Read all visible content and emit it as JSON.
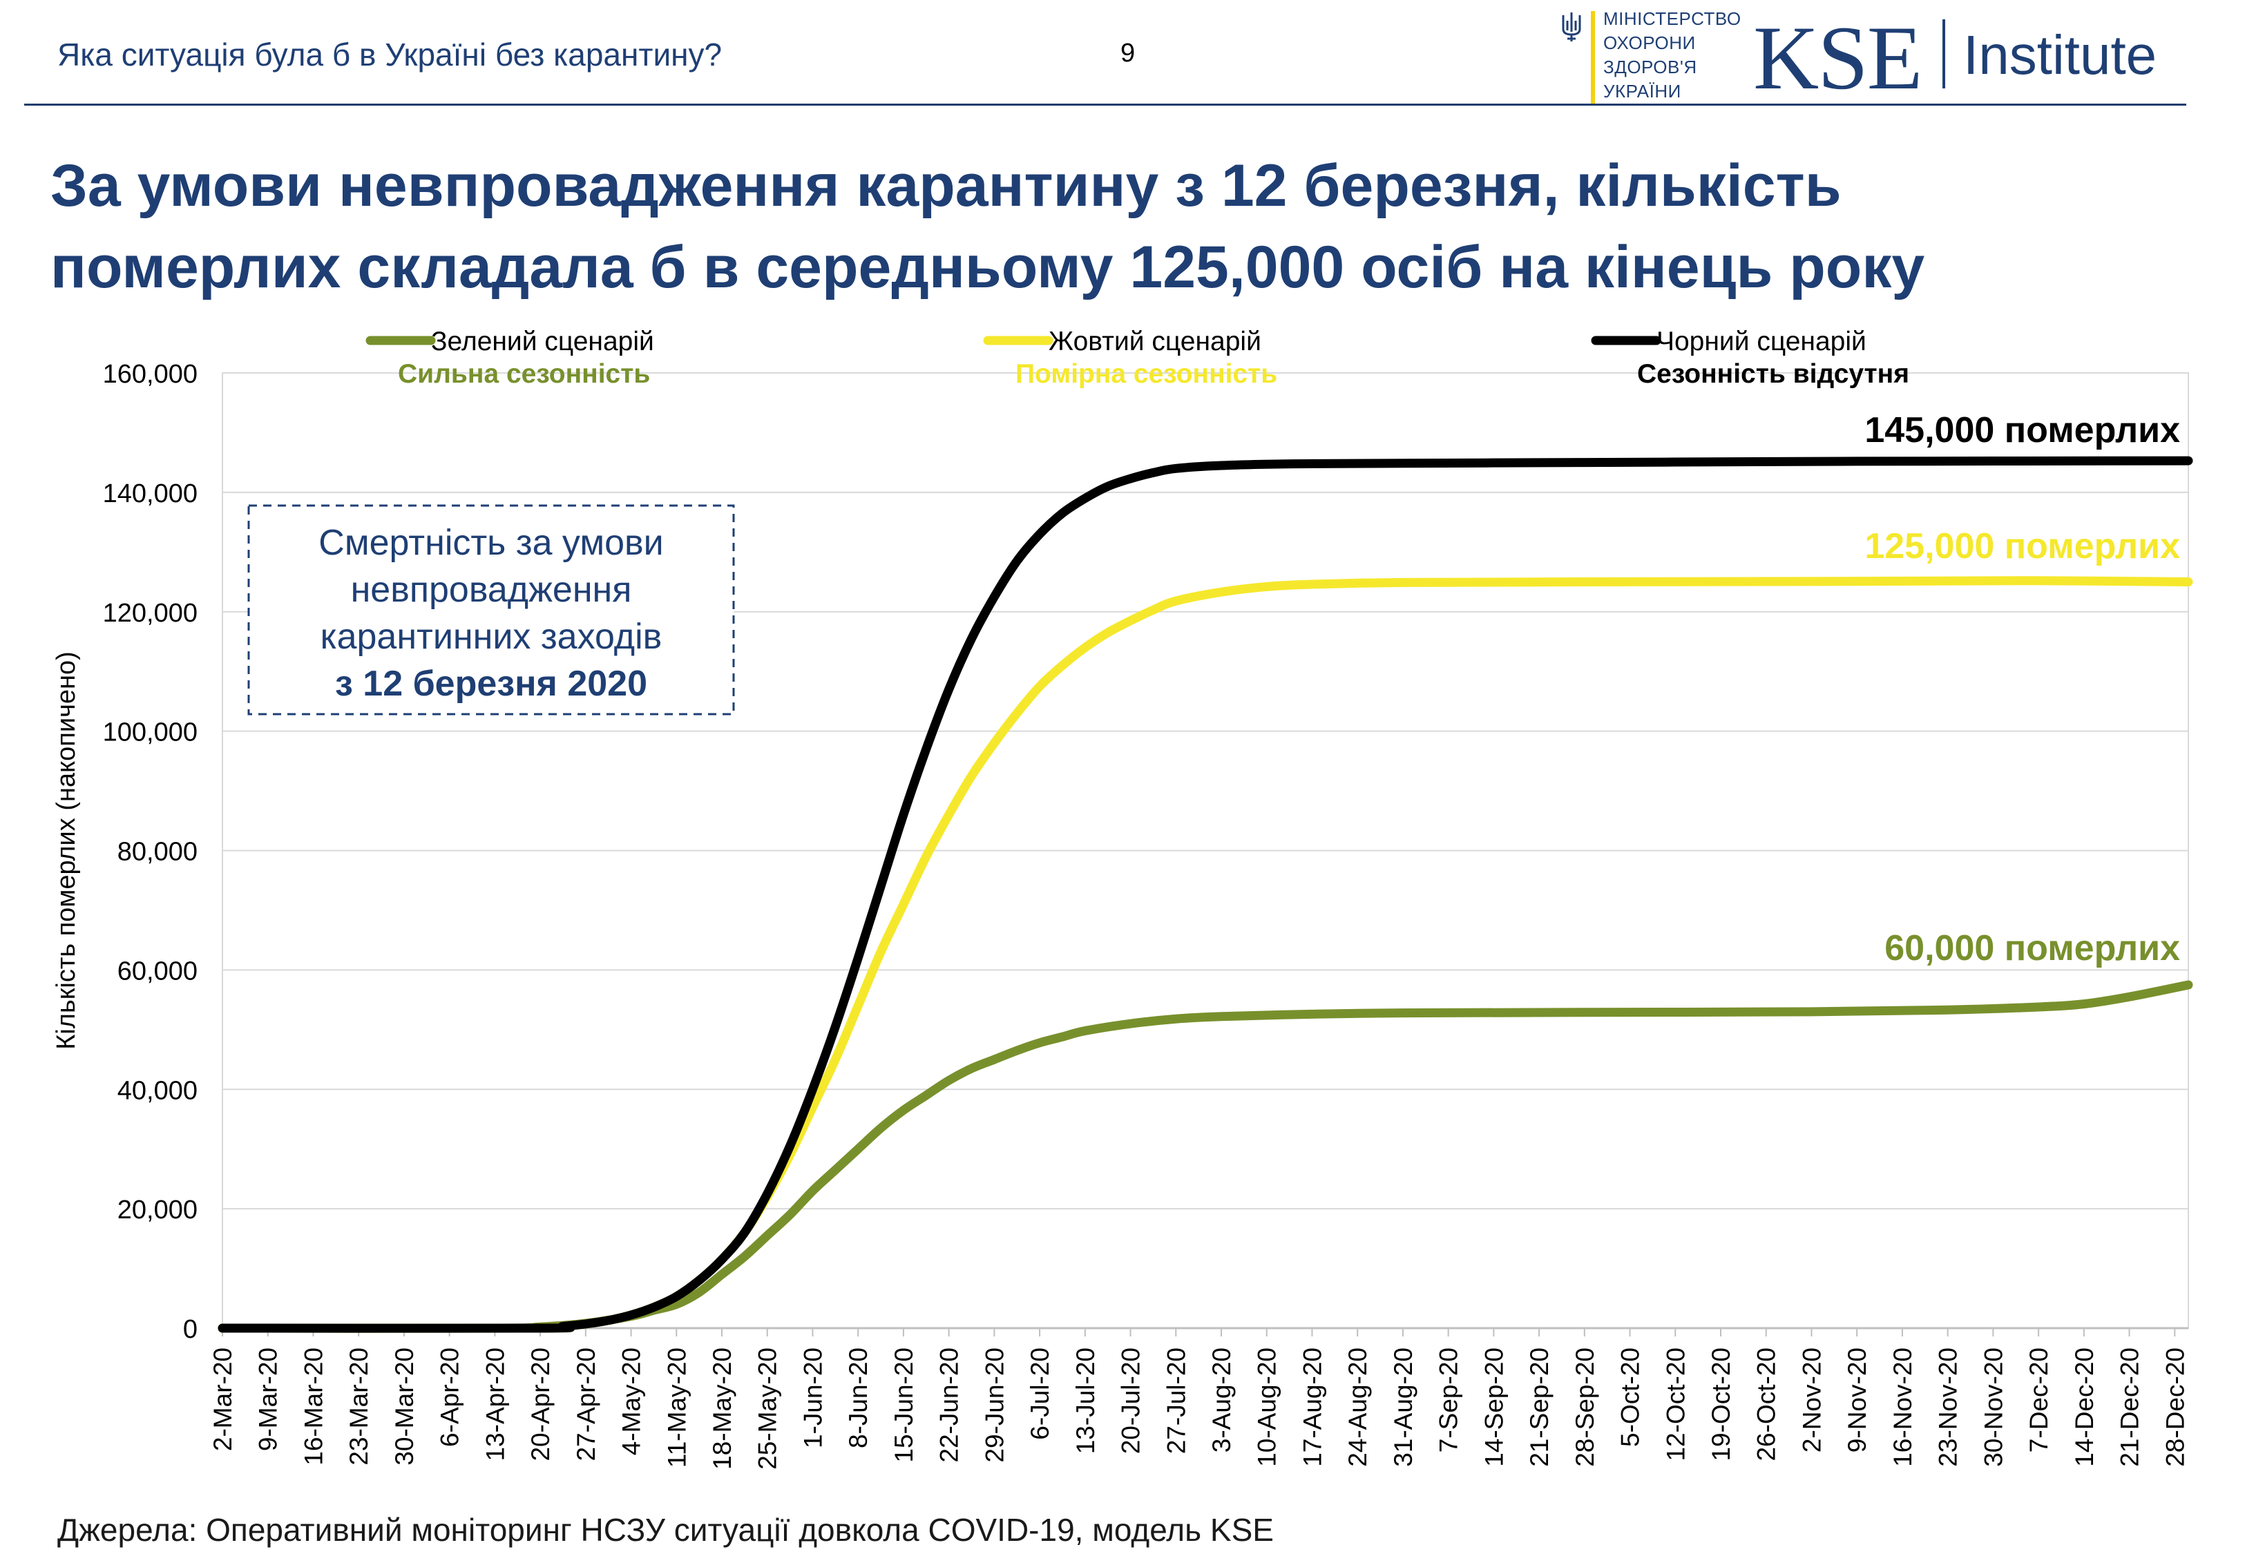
{
  "header": {
    "subtitle": "Яка ситуація була б в Україні без карантину?",
    "page_number": "9",
    "ministry_lines": [
      "МІНІСТЕРСТВО",
      "ОХОРОНИ",
      "ЗДОРОВ'Я",
      "УКРАЇНИ"
    ],
    "kse_logo": "KSE",
    "kse_institute": "Institute",
    "brand_color": "#1f3f74",
    "ministry_accent": "#f5d20a"
  },
  "title_lines": [
    "За умови невпровадження карантину з 12 березня, кількість",
    "померлих складала б в середньому 125,000 осіб на кінець року"
  ],
  "chart_data": {
    "type": "line",
    "ylabel": "Кількість померлих (накопичено)",
    "ylim": [
      0,
      160000
    ],
    "yticks": [
      0,
      20000,
      40000,
      60000,
      80000,
      100000,
      120000,
      140000,
      160000
    ],
    "ytick_labels": [
      "0",
      "20,000",
      "40,000",
      "60,000",
      "80,000",
      "100,000",
      "120,000",
      "140,000",
      "160,000"
    ],
    "x_categories": [
      "2-Mar-20",
      "9-Mar-20",
      "16-Mar-20",
      "23-Mar-20",
      "30-Mar-20",
      "6-Apr-20",
      "13-Apr-20",
      "20-Apr-20",
      "27-Apr-20",
      "4-May-20",
      "11-May-20",
      "18-May-20",
      "25-May-20",
      "1-Jun-20",
      "8-Jun-20",
      "15-Jun-20",
      "22-Jun-20",
      "29-Jun-20",
      "6-Jul-20",
      "13-Jul-20",
      "20-Jul-20",
      "27-Jul-20",
      "3-Aug-20",
      "10-Aug-20",
      "17-Aug-20",
      "24-Aug-20",
      "31-Aug-20",
      "7-Sep-20",
      "14-Sep-20",
      "21-Sep-20",
      "28-Sep-20",
      "5-Oct-20",
      "12-Oct-20",
      "19-Oct-20",
      "26-Oct-20",
      "2-Nov-20",
      "9-Nov-20",
      "16-Nov-20",
      "23-Nov-20",
      "30-Nov-20",
      "7-Dec-20",
      "14-Dec-20",
      "21-Dec-20",
      "28-Dec-20"
    ],
    "x_span_weeks": 43.3,
    "grid": true,
    "series": [
      {
        "name": "Зелений сценарій",
        "subtitle": "Сильна сезонність",
        "color": "#78902c",
        "end_label": "60,000 померлих",
        "points": [
          [
            0,
            0
          ],
          [
            6,
            0
          ],
          [
            7,
            200
          ],
          [
            8,
            800
          ],
          [
            9,
            2000
          ],
          [
            9.5,
            3000
          ],
          [
            10,
            4000
          ],
          [
            10.5,
            6000
          ],
          [
            11,
            9000
          ],
          [
            11.5,
            12000
          ],
          [
            12,
            15500
          ],
          [
            12.5,
            19000
          ],
          [
            13,
            23000
          ],
          [
            13.5,
            26500
          ],
          [
            14,
            30000
          ],
          [
            14.5,
            33500
          ],
          [
            15,
            36500
          ],
          [
            15.5,
            39000
          ],
          [
            16,
            41500
          ],
          [
            16.5,
            43500
          ],
          [
            17,
            45000
          ],
          [
            17.5,
            46500
          ],
          [
            18,
            47800
          ],
          [
            18.5,
            48800
          ],
          [
            19,
            49800
          ],
          [
            20,
            51000
          ],
          [
            21,
            51800
          ],
          [
            22,
            52200
          ],
          [
            24,
            52600
          ],
          [
            26,
            52800
          ],
          [
            30,
            52900
          ],
          [
            35,
            53000
          ],
          [
            38,
            53300
          ],
          [
            40,
            53800
          ],
          [
            41,
            54300
          ],
          [
            42,
            55500
          ],
          [
            43.3,
            57500
          ]
        ]
      },
      {
        "name": "Жовтий сценарій",
        "subtitle": "Помірна сезонність",
        "color": "#f5e82c",
        "end_label": "125,000 померлих",
        "points": [
          [
            0,
            0
          ],
          [
            7,
            0
          ],
          [
            7.5,
            300
          ],
          [
            8,
            700
          ],
          [
            8.5,
            1300
          ],
          [
            9,
            2200
          ],
          [
            9.5,
            3500
          ],
          [
            10,
            5300
          ],
          [
            10.5,
            8000
          ],
          [
            11,
            11500
          ],
          [
            11.5,
            16000
          ],
          [
            12,
            22000
          ],
          [
            12.5,
            29000
          ],
          [
            13,
            37000
          ],
          [
            13.5,
            45000
          ],
          [
            14,
            54000
          ],
          [
            14.5,
            63000
          ],
          [
            15,
            71000
          ],
          [
            15.5,
            79000
          ],
          [
            16,
            86000
          ],
          [
            16.5,
            92500
          ],
          [
            17,
            98000
          ],
          [
            17.5,
            103000
          ],
          [
            18,
            107500
          ],
          [
            18.5,
            111000
          ],
          [
            19,
            114000
          ],
          [
            19.5,
            116500
          ],
          [
            20,
            118500
          ],
          [
            20.5,
            120300
          ],
          [
            21,
            121800
          ],
          [
            22,
            123300
          ],
          [
            23,
            124200
          ],
          [
            24,
            124600
          ],
          [
            26,
            124900
          ],
          [
            30,
            125000
          ],
          [
            36,
            125100
          ],
          [
            40,
            125200
          ],
          [
            43.3,
            125000
          ]
        ]
      },
      {
        "name": "Чорний сценарій",
        "subtitle": "Сезонність відсутня",
        "color": "#000000",
        "end_label": "145,000 померлих",
        "points": [
          [
            0,
            0
          ],
          [
            7,
            0
          ],
          [
            7.5,
            300
          ],
          [
            8,
            700
          ],
          [
            8.5,
            1300
          ],
          [
            9,
            2200
          ],
          [
            9.5,
            3500
          ],
          [
            10,
            5300
          ],
          [
            10.5,
            8000
          ],
          [
            11,
            11500
          ],
          [
            11.5,
            16000
          ],
          [
            12,
            22500
          ],
          [
            12.5,
            30500
          ],
          [
            13,
            40000
          ],
          [
            13.5,
            50500
          ],
          [
            14,
            62000
          ],
          [
            14.5,
            74000
          ],
          [
            15,
            86000
          ],
          [
            15.5,
            97000
          ],
          [
            16,
            107000
          ],
          [
            16.5,
            115500
          ],
          [
            17,
            122500
          ],
          [
            17.5,
            128500
          ],
          [
            18,
            133000
          ],
          [
            18.5,
            136500
          ],
          [
            19,
            139000
          ],
          [
            19.5,
            141000
          ],
          [
            20,
            142300
          ],
          [
            20.5,
            143300
          ],
          [
            21,
            144000
          ],
          [
            22,
            144500
          ],
          [
            24,
            144800
          ],
          [
            30,
            145000
          ],
          [
            36,
            145200
          ],
          [
            43.3,
            145300
          ]
        ]
      }
    ],
    "annotation_box": [
      "Смертність за умови",
      "невпровадження",
      "карантинних заходів",
      "з 12 березня 2020"
    ]
  },
  "source": "Джерела: Оперативний моніторинг НСЗУ ситуації довкола COVID-19, модель KSE"
}
